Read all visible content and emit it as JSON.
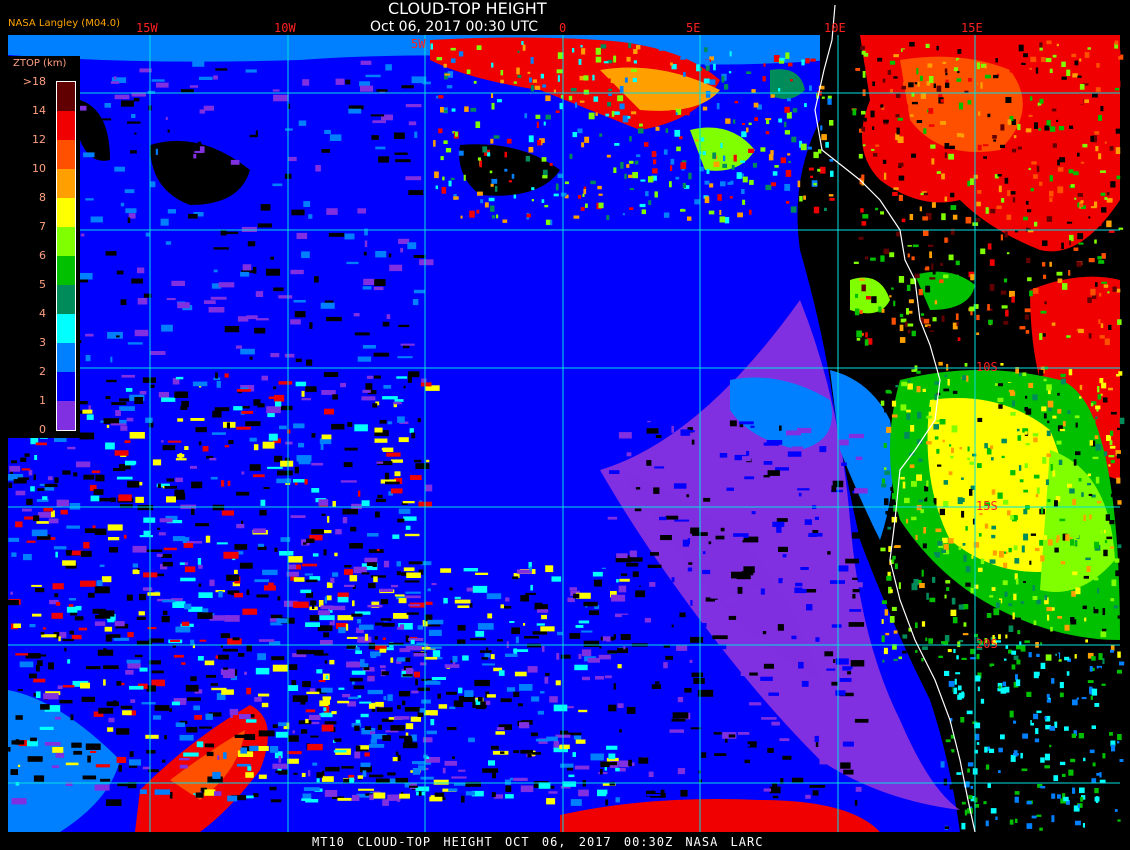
{
  "header": {
    "title": "CLOUD-TOP HEIGHT",
    "subtitle": "Oct 06, 2017 00:30 UTC",
    "credit": "NASA Langley (M04.0)"
  },
  "legend": {
    "title": "ZTOP (km)",
    "labels": [
      ">18",
      "14",
      "12",
      "10",
      "8",
      "7",
      "6",
      "5",
      "4",
      "3",
      "2",
      "1",
      "0"
    ],
    "colors": [
      "#600000",
      "#f00000",
      "#ff5000",
      "#ffa000",
      "#ffff00",
      "#80ff00",
      "#00c000",
      "#008c5a",
      "#00ffff",
      "#0080ff",
      "#0000ff",
      "#8030e0"
    ]
  },
  "grid": {
    "longitude_labels": [
      "15W",
      "10W",
      "5W",
      "0",
      "5E",
      "10E",
      "15E"
    ],
    "latitude_labels": [
      "10S",
      "15S",
      "20S"
    ],
    "line_color": "#00e0e0",
    "label_color": "#ff2020"
  },
  "footer": {
    "caption": "MT10  CLOUD-TOP HEIGHT  OCT 06, 2017 00:30Z  NASA LARC"
  }
}
